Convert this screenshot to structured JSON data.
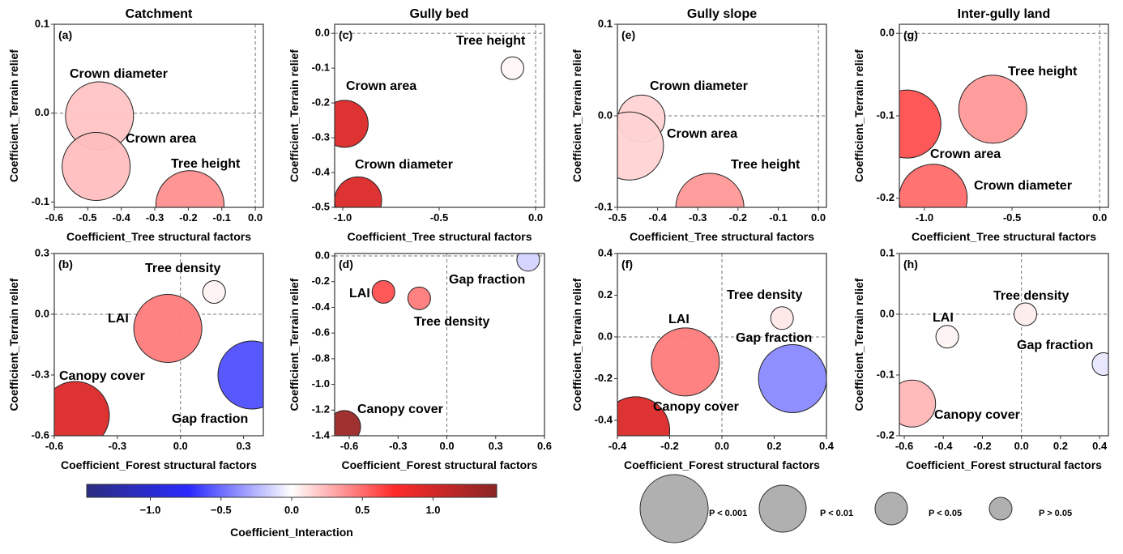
{
  "chart_data": [
    {
      "id": "a",
      "type": "scatter",
      "title": "Catchment",
      "panel_label": "(a)",
      "xlabel": "Coefficient_Tree structural factors",
      "ylabel": "Coefficient_Terrain relief",
      "xlim": [
        -0.6,
        0.024
      ],
      "ylim": [
        -0.106,
        0.1
      ],
      "xticks": [
        {
          "v": -0.6,
          "t": "-0.6"
        },
        {
          "v": -0.5,
          "t": "-0.5"
        },
        {
          "v": -0.4,
          "t": "-0.4"
        },
        {
          "v": -0.3,
          "t": "-0.3"
        },
        {
          "v": -0.2,
          "t": "-0.2"
        },
        {
          "v": -0.1,
          "t": "-0.1"
        },
        {
          "v": 0,
          "t": "0.0"
        }
      ],
      "yticks": [
        {
          "v": 0.1,
          "t": "0.1"
        },
        {
          "v": 0,
          "t": "0.0"
        },
        {
          "v": -0.1,
          "t": "-0.1"
        }
      ],
      "points": [
        {
          "name": "Crown diameter",
          "x": -0.465,
          "y": -0.003,
          "interaction": 0.2,
          "p": "P < 0.001"
        },
        {
          "name": "Crown area",
          "x": -0.475,
          "y": -0.06,
          "interaction": 0.22,
          "p": "P < 0.001"
        },
        {
          "name": "Tree height",
          "x": -0.195,
          "y": -0.103,
          "interaction": 0.38,
          "p": "P < 0.001"
        }
      ]
    },
    {
      "id": "c",
      "type": "scatter",
      "title": "Gully bed",
      "panel_label": "(c)",
      "xlabel": "Coefficient_Tree structural factors",
      "ylabel": "Coefficient_Terrain relief",
      "xlim": [
        -1.042,
        0.046
      ],
      "ylim": [
        -0.5,
        0.026
      ],
      "xticks": [
        {
          "v": -1,
          "t": "-1.0"
        },
        {
          "v": -0.5,
          "t": "-0.5"
        },
        {
          "v": 0,
          "t": "0.0"
        }
      ],
      "yticks": [
        {
          "v": 0,
          "t": "0.0"
        },
        {
          "v": -0.1,
          "t": "-0.1"
        },
        {
          "v": -0.2,
          "t": "-0.2"
        },
        {
          "v": -0.3,
          "t": "-0.3"
        },
        {
          "v": -0.4,
          "t": "-0.4"
        },
        {
          "v": -0.5,
          "t": "-0.5"
        }
      ],
      "points": [
        {
          "name": "Tree height",
          "x": -0.12,
          "y": -0.1,
          "interaction": 0.03,
          "p": "P > 0.05"
        },
        {
          "name": "Crown area",
          "x": -0.99,
          "y": -0.26,
          "interaction": 0.95,
          "p": "P < 0.01"
        },
        {
          "name": "Crown diameter",
          "x": -0.92,
          "y": -0.48,
          "interaction": 0.95,
          "p": "P < 0.01"
        }
      ]
    },
    {
      "id": "e",
      "type": "scatter",
      "title": "Gully slope",
      "panel_label": "(e)",
      "xlabel": "Coefficient_Tree structural factors",
      "ylabel": "Coefficient_Terrain relief",
      "xlim": [
        -0.5,
        0.02
      ],
      "ylim": [
        -0.1,
        0.1
      ],
      "xticks": [
        {
          "v": -0.5,
          "t": "-0.5"
        },
        {
          "v": -0.4,
          "t": "-0.4"
        },
        {
          "v": -0.3,
          "t": "-0.3"
        },
        {
          "v": -0.2,
          "t": "-0.2"
        },
        {
          "v": -0.1,
          "t": "-0.1"
        },
        {
          "v": 0,
          "t": "0.0"
        }
      ],
      "yticks": [
        {
          "v": 0.1,
          "t": "0.1"
        },
        {
          "v": 0,
          "t": "0.0"
        },
        {
          "v": -0.1,
          "t": "-0.1"
        }
      ],
      "points": [
        {
          "name": "Crown diameter",
          "x": -0.44,
          "y": -0.003,
          "interaction": 0.15,
          "p": "P < 0.01"
        },
        {
          "name": "Crown area",
          "x": -0.47,
          "y": -0.033,
          "interaction": 0.15,
          "p": "P < 0.001"
        },
        {
          "name": "Tree height",
          "x": -0.27,
          "y": -0.1,
          "interaction": 0.35,
          "p": "P < 0.001"
        }
      ]
    },
    {
      "id": "g",
      "type": "scatter",
      "title": "Inter-gully land",
      "panel_label": "(g)",
      "xlabel": "Coefficient_Tree structural factors",
      "ylabel": "Coefficient_Terrain relief",
      "xlim": [
        -1.143,
        0.05
      ],
      "ylim": [
        -0.211,
        0.011
      ],
      "xticks": [
        {
          "v": -1,
          "t": "-1.0"
        },
        {
          "v": -0.5,
          "t": "-0.5"
        },
        {
          "v": 0,
          "t": "0.0"
        }
      ],
      "yticks": [
        {
          "v": 0,
          "t": "0.0"
        },
        {
          "v": -0.1,
          "t": "-0.1"
        },
        {
          "v": -0.2,
          "t": "-0.2"
        }
      ],
      "points": [
        {
          "name": "Tree height",
          "x": -0.61,
          "y": -0.092,
          "interaction": 0.35,
          "p": "P < 0.001"
        },
        {
          "name": "Crown area",
          "x": -1.1,
          "y": -0.11,
          "interaction": 0.6,
          "p": "P < 0.001"
        },
        {
          "name": "Crown diameter",
          "x": -0.95,
          "y": -0.2,
          "interaction": 0.5,
          "p": "P < 0.001"
        }
      ]
    },
    {
      "id": "b",
      "type": "scatter",
      "panel_label": "(b)",
      "xlabel": "Coefficient_Forest structural factors",
      "ylabel": "Coefficient_Terrain relief",
      "xlim": [
        -0.6,
        0.394
      ],
      "ylim": [
        -0.6,
        0.3
      ],
      "xticks": [
        {
          "v": -0.6,
          "t": "-0.6"
        },
        {
          "v": -0.3,
          "t": "-0.3"
        },
        {
          "v": 0,
          "t": "0.0"
        },
        {
          "v": 0.3,
          "t": "0.3"
        }
      ],
      "yticks": [
        {
          "v": 0.3,
          "t": "0.3"
        },
        {
          "v": 0,
          "t": "0.0"
        },
        {
          "v": -0.3,
          "t": "-0.3"
        },
        {
          "v": -0.6,
          "t": "-0.6"
        }
      ],
      "points": [
        {
          "name": "Tree density",
          "x": 0.16,
          "y": 0.11,
          "interaction": 0.04,
          "p": "P > 0.05"
        },
        {
          "name": "LAI",
          "x": -0.06,
          "y": -0.07,
          "interaction": 0.45,
          "p": "P < 0.001"
        },
        {
          "name": "Canopy cover",
          "x": -0.5,
          "y": -0.5,
          "interaction": 0.95,
          "p": "P < 0.001"
        },
        {
          "name": "Gap fraction",
          "x": 0.34,
          "y": -0.3,
          "interaction": -0.6,
          "p": "P < 0.001"
        }
      ]
    },
    {
      "id": "d",
      "type": "scatter",
      "panel_label": "(d)",
      "xlabel": "Coefficient_Forest structural factors",
      "ylabel": "Coefficient_Terrain relief",
      "xlim": [
        -0.69,
        0.6
      ],
      "ylim": [
        -1.4,
        0.019
      ],
      "xticks": [
        {
          "v": -0.6,
          "t": "-0.6"
        },
        {
          "v": -0.3,
          "t": "-0.3"
        },
        {
          "v": 0,
          "t": "0.0"
        },
        {
          "v": 0.3,
          "t": "0.3"
        },
        {
          "v": 0.6,
          "t": "0.6"
        }
      ],
      "yticks": [
        {
          "v": 0,
          "t": "0.0"
        },
        {
          "v": -0.2,
          "t": "-0.2"
        },
        {
          "v": -0.4,
          "t": "-0.4"
        },
        {
          "v": -0.6,
          "t": "-0.6"
        },
        {
          "v": -0.8,
          "t": "-0.8"
        },
        {
          "v": -1,
          "t": "-1.0"
        },
        {
          "v": -1.2,
          "t": "-1.2"
        },
        {
          "v": -1.4,
          "t": "-1.4"
        }
      ],
      "points": [
        {
          "name": "LAI",
          "x": -0.39,
          "y": -0.28,
          "interaction": 0.6,
          "p": "P > 0.05"
        },
        {
          "name": "Tree density",
          "x": -0.17,
          "y": -0.33,
          "interaction": 0.45,
          "p": "P > 0.05"
        },
        {
          "name": "Gap fraction",
          "x": 0.5,
          "y": -0.03,
          "interaction": -0.15,
          "p": "P > 0.05"
        },
        {
          "name": "Canopy cover",
          "x": -0.63,
          "y": -1.33,
          "interaction": 1.35,
          "p": "P < 0.05"
        }
      ]
    },
    {
      "id": "f",
      "type": "scatter",
      "panel_label": "(f)",
      "xlabel": "Coefficient_Forest structural factors",
      "ylabel": "Coefficient_Terrain relief",
      "xlim": [
        -0.4,
        0.4
      ],
      "ylim": [
        -0.474,
        0.4
      ],
      "xticks": [
        {
          "v": -0.4,
          "t": "-0.4"
        },
        {
          "v": -0.2,
          "t": "-0.2"
        },
        {
          "v": 0,
          "t": "0.0"
        },
        {
          "v": 0.2,
          "t": "0.2"
        },
        {
          "v": 0.4,
          "t": "0.4"
        }
      ],
      "yticks": [
        {
          "v": 0.4,
          "t": "0.4"
        },
        {
          "v": 0.2,
          "t": "0.2"
        },
        {
          "v": 0,
          "t": "0.0"
        },
        {
          "v": -0.2,
          "t": "-0.2"
        },
        {
          "v": -0.4,
          "t": "-0.4"
        }
      ],
      "points": [
        {
          "name": "Tree density",
          "x": 0.23,
          "y": 0.09,
          "interaction": 0.08,
          "p": "P > 0.05"
        },
        {
          "name": "LAI",
          "x": -0.14,
          "y": -0.12,
          "interaction": 0.45,
          "p": "P < 0.001"
        },
        {
          "name": "Gap fraction",
          "x": 0.27,
          "y": -0.2,
          "interaction": -0.4,
          "p": "P < 0.001"
        },
        {
          "name": "Canopy cover",
          "x": -0.33,
          "y": -0.45,
          "interaction": 0.95,
          "p": "P < 0.001"
        }
      ]
    },
    {
      "id": "h",
      "type": "scatter",
      "panel_label": "(h)",
      "xlabel": "Coefficient_Forest structural factors",
      "ylabel": "Coefficient_Terrain relief",
      "xlim": [
        -0.625,
        0.445
      ],
      "ylim": [
        -0.2,
        0.1
      ],
      "xticks": [
        {
          "v": -0.6,
          "t": "-0.6"
        },
        {
          "v": -0.4,
          "t": "-0.4"
        },
        {
          "v": -0.2,
          "t": "-0.2"
        },
        {
          "v": 0,
          "t": "0.0"
        },
        {
          "v": 0.2,
          "t": "0.2"
        },
        {
          "v": 0.4,
          "t": "0.4"
        }
      ],
      "yticks": [
        {
          "v": 0.1,
          "t": "0.1"
        },
        {
          "v": 0,
          "t": "0.0"
        },
        {
          "v": -0.1,
          "t": "-0.1"
        },
        {
          "v": -0.2,
          "t": "-0.2"
        }
      ],
      "points": [
        {
          "name": "Tree density",
          "x": 0.02,
          "y": 0.0,
          "interaction": 0.06,
          "p": "P > 0.05"
        },
        {
          "name": "LAI",
          "x": -0.38,
          "y": -0.037,
          "interaction": 0.04,
          "p": "P > 0.05"
        },
        {
          "name": "Gap fraction",
          "x": 0.42,
          "y": -0.082,
          "interaction": -0.08,
          "p": "P > 0.05"
        },
        {
          "name": "Canopy cover",
          "x": -0.56,
          "y": -0.147,
          "interaction": 0.25,
          "p": "P < 0.01"
        }
      ]
    }
  ],
  "colorbar": {
    "label": "Coefficient_Interaction",
    "range": [
      -1.45,
      1.45
    ],
    "ticks": [
      {
        "v": -1,
        "t": "−1.0"
      },
      {
        "v": -0.5,
        "t": "−0.5"
      },
      {
        "v": 0,
        "t": "0.0"
      },
      {
        "v": 0.5,
        "t": "0.5"
      },
      {
        "v": 1,
        "t": "1.0"
      }
    ],
    "colors": {
      "min": "#2b2d80",
      "neg": "#2a2aff",
      "zero": "#ffffff",
      "pos": "#ff2a2a",
      "max": "#8b2525"
    }
  },
  "size_legend": [
    {
      "label": "P < 0.001"
    },
    {
      "label": "P < 0.01"
    },
    {
      "label": "P < 0.05"
    },
    {
      "label": "P > 0.05"
    }
  ],
  "bubble_fill_legend": "#b0b0b0"
}
